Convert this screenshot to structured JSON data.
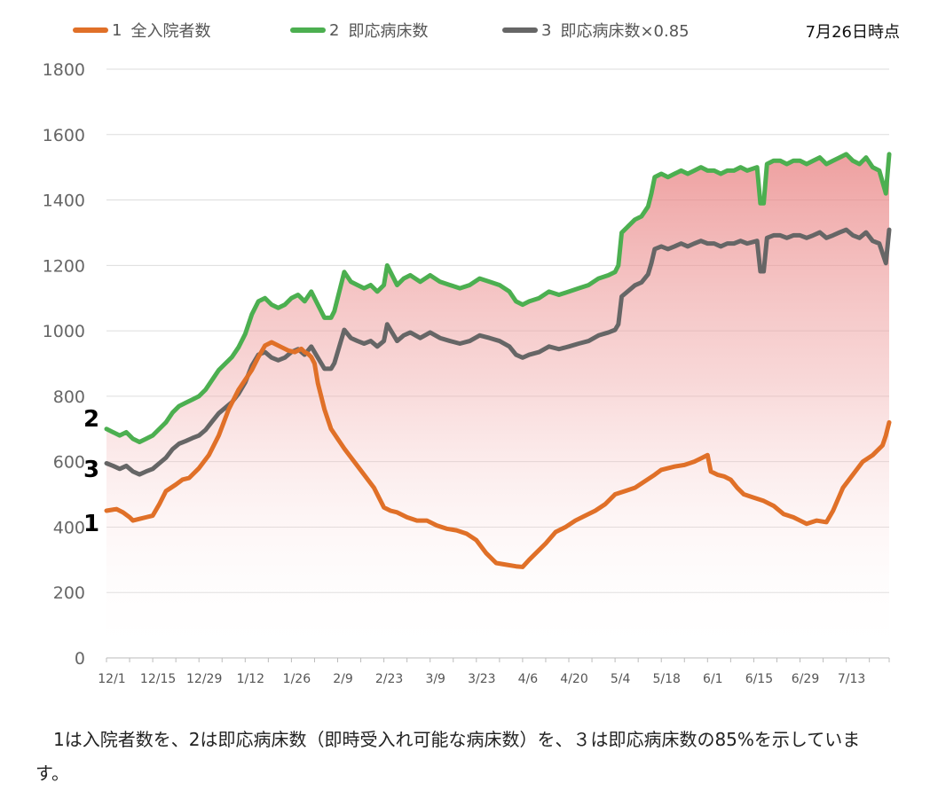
{
  "legend": [
    {
      "num": "1",
      "label": "全入院者数",
      "color": "#E07028"
    },
    {
      "num": "2",
      "label": "即応病床数",
      "color": "#4CAF50"
    },
    {
      "num": "3",
      "label": "即応病床数×0.85",
      "color": "#666666"
    }
  ],
  "as_of": "7月26日時点",
  "series_tags": [
    "2",
    "3",
    "1"
  ],
  "caption": "　1は入院者数を、2は即応病床数（即時受入れ可能な病床数）を、３は即応病床数の85%を示しています。",
  "chart_data": {
    "type": "line",
    "title": "",
    "xlabel": "",
    "ylabel": "",
    "ylim": [
      0,
      1800
    ],
    "yticks": [
      0,
      200,
      400,
      600,
      800,
      1000,
      1200,
      1400,
      1600,
      1800
    ],
    "grid": true,
    "legend_position": "top",
    "x_tick_labels": [
      "12/1",
      "12/15",
      "12/29",
      "1/12",
      "1/26",
      "2/9",
      "2/23",
      "3/9",
      "3/23",
      "4/6",
      "4/20",
      "5/4",
      "5/18",
      "6/1",
      "6/15",
      "6/29",
      "7/13"
    ],
    "x_tick_days": [
      0,
      14,
      28,
      42,
      56,
      70,
      84,
      98,
      112,
      126,
      140,
      154,
      168,
      182,
      196,
      210,
      224
    ],
    "x_max_day": 237,
    "fill_between": {
      "upper": "2 即応病床数",
      "color": "#E88080"
    },
    "series": [
      {
        "name": "1 全入院者数",
        "color": "#E07028",
        "x": [
          0,
          3,
          5,
          7,
          8,
          10,
          12,
          14,
          16,
          18,
          21,
          23,
          25,
          28,
          31,
          34,
          37,
          40,
          42,
          44,
          46,
          48,
          50,
          53,
          55,
          57,
          59,
          60,
          61,
          62,
          63,
          64,
          66,
          68,
          70,
          72,
          75,
          78,
          81,
          84,
          86,
          88,
          91,
          94,
          97,
          100,
          103,
          106,
          109,
          112,
          115,
          118,
          121,
          124,
          126,
          128,
          130,
          133,
          136,
          139,
          142,
          145,
          148,
          151,
          154,
          157,
          160,
          163,
          166,
          168,
          170,
          172,
          175,
          178,
          180,
          182,
          183,
          185,
          187,
          189,
          191,
          193,
          196,
          199,
          202,
          205,
          208,
          210,
          212,
          215,
          218,
          220,
          223,
          226,
          229,
          232,
          235,
          236,
          237
        ],
        "values": [
          450,
          455,
          445,
          430,
          420,
          425,
          430,
          435,
          470,
          510,
          530,
          545,
          550,
          580,
          620,
          680,
          760,
          820,
          850,
          880,
          920,
          955,
          965,
          950,
          940,
          935,
          945,
          935,
          930,
          920,
          900,
          840,
          760,
          700,
          670,
          640,
          600,
          560,
          520,
          460,
          450,
          445,
          430,
          420,
          420,
          405,
          395,
          390,
          380,
          360,
          320,
          290,
          285,
          280,
          278,
          300,
          320,
          350,
          385,
          400,
          420,
          435,
          450,
          470,
          500,
          510,
          520,
          540,
          560,
          575,
          580,
          585,
          590,
          600,
          610,
          620,
          570,
          560,
          555,
          545,
          520,
          500,
          490,
          480,
          465,
          440,
          430,
          420,
          410,
          420,
          415,
          450,
          520,
          560,
          600,
          620,
          650,
          680,
          720
        ]
      },
      {
        "name": "2 即応病床数",
        "color": "#4CAF50",
        "x": [
          0,
          2,
          4,
          6,
          8,
          10,
          12,
          14,
          16,
          18,
          20,
          22,
          24,
          26,
          28,
          30,
          32,
          34,
          36,
          38,
          40,
          42,
          44,
          46,
          48,
          50,
          52,
          54,
          56,
          58,
          60,
          62,
          64,
          66,
          68,
          69,
          70,
          72,
          74,
          76,
          78,
          80,
          82,
          84,
          85,
          86,
          88,
          90,
          92,
          95,
          98,
          101,
          104,
          107,
          110,
          113,
          116,
          119,
          122,
          124,
          126,
          128,
          131,
          134,
          137,
          140,
          143,
          146,
          149,
          152,
          154,
          155,
          156,
          158,
          160,
          162,
          164,
          165,
          166,
          168,
          170,
          172,
          174,
          176,
          178,
          180,
          182,
          184,
          186,
          188,
          190,
          192,
          194,
          197,
          198,
          199,
          200,
          202,
          204,
          206,
          208,
          210,
          212,
          214,
          216,
          218,
          220,
          222,
          224,
          226,
          228,
          230,
          232,
          234,
          236,
          237
        ],
        "values": [
          700,
          690,
          680,
          690,
          670,
          660,
          670,
          680,
          700,
          720,
          750,
          770,
          780,
          790,
          800,
          820,
          850,
          880,
          900,
          920,
          950,
          990,
          1050,
          1090,
          1100,
          1080,
          1070,
          1080,
          1100,
          1110,
          1090,
          1120,
          1080,
          1040,
          1040,
          1060,
          1100,
          1180,
          1150,
          1140,
          1130,
          1140,
          1120,
          1140,
          1200,
          1180,
          1140,
          1160,
          1170,
          1150,
          1170,
          1150,
          1140,
          1130,
          1140,
          1160,
          1150,
          1140,
          1120,
          1090,
          1080,
          1090,
          1100,
          1120,
          1110,
          1120,
          1130,
          1140,
          1160,
          1170,
          1180,
          1200,
          1300,
          1320,
          1340,
          1350,
          1380,
          1420,
          1470,
          1480,
          1470,
          1480,
          1490,
          1480,
          1490,
          1500,
          1490,
          1490,
          1480,
          1490,
          1490,
          1500,
          1490,
          1500,
          1390,
          1390,
          1510,
          1520,
          1520,
          1510,
          1520,
          1520,
          1510,
          1520,
          1530,
          1510,
          1520,
          1530,
          1540,
          1520,
          1510,
          1530,
          1500,
          1490,
          1420,
          1540
        ]
      },
      {
        "name": "3 即応病床数×0.85",
        "color": "#666666",
        "x": [
          0,
          2,
          4,
          6,
          8,
          10,
          12,
          14,
          16,
          18,
          20,
          22,
          24,
          26,
          28,
          30,
          32,
          34,
          36,
          38,
          40,
          42,
          44,
          46,
          48,
          50,
          52,
          54,
          56,
          58,
          60,
          62,
          64,
          66,
          68,
          69,
          70,
          72,
          74,
          76,
          78,
          80,
          82,
          84,
          85,
          86,
          88,
          90,
          92,
          95,
          98,
          101,
          104,
          107,
          110,
          113,
          116,
          119,
          122,
          124,
          126,
          128,
          131,
          134,
          137,
          140,
          143,
          146,
          149,
          152,
          154,
          155,
          156,
          158,
          160,
          162,
          164,
          165,
          166,
          168,
          170,
          172,
          174,
          176,
          178,
          180,
          182,
          184,
          186,
          188,
          190,
          192,
          194,
          197,
          198,
          199,
          200,
          202,
          204,
          206,
          208,
          210,
          212,
          214,
          216,
          218,
          220,
          222,
          224,
          226,
          228,
          230,
          232,
          234,
          236,
          237
        ],
        "values": [
          595,
          587,
          578,
          587,
          570,
          561,
          570,
          578,
          595,
          612,
          638,
          655,
          663,
          672,
          680,
          697,
          723,
          748,
          765,
          782,
          808,
          842,
          893,
          927,
          935,
          918,
          910,
          918,
          935,
          944,
          927,
          952,
          918,
          884,
          884,
          901,
          935,
          1003,
          978,
          969,
          961,
          969,
          952,
          969,
          1020,
          1003,
          969,
          986,
          995,
          978,
          995,
          978,
          969,
          961,
          969,
          986,
          978,
          969,
          952,
          927,
          918,
          927,
          935,
          952,
          944,
          952,
          961,
          969,
          986,
          995,
          1003,
          1020,
          1105,
          1122,
          1139,
          1148,
          1173,
          1207,
          1250,
          1258,
          1250,
          1258,
          1267,
          1258,
          1267,
          1275,
          1267,
          1267,
          1258,
          1267,
          1267,
          1275,
          1267,
          1275,
          1182,
          1182,
          1284,
          1292,
          1292,
          1284,
          1292,
          1292,
          1284,
          1292,
          1301,
          1284,
          1292,
          1301,
          1309,
          1292,
          1284,
          1301,
          1275,
          1267,
          1207,
          1309
        ]
      }
    ]
  }
}
